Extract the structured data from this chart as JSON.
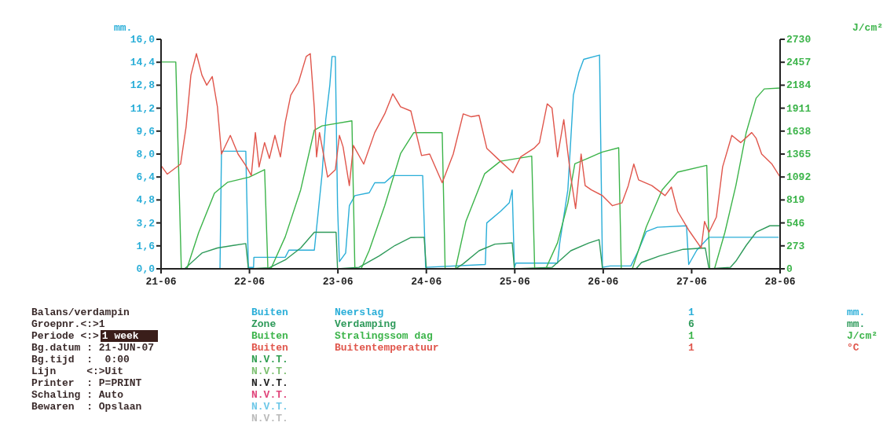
{
  "chart_data": {
    "type": "line",
    "ylabel": "mm.",
    "y2label": "J/cm²",
    "xlim": [
      "--06-21",
      "--06-28"
    ],
    "xticks": [
      {
        "value": "--06-21",
        "label": "21-06"
      },
      {
        "value": "--06-22",
        "label": "22-06"
      },
      {
        "value": "--06-23",
        "label": "23-06"
      },
      {
        "value": "--06-24",
        "label": "24-06"
      },
      {
        "value": "--06-25",
        "label": "25-06"
      },
      {
        "value": "--06-26",
        "label": "26-06"
      },
      {
        "value": "--06-27",
        "label": "27-06"
      },
      {
        "value": "--06-28",
        "label": "28-06"
      }
    ],
    "ylim": [
      0,
      16
    ],
    "yticks": [
      {
        "value": 0,
        "label": "0,0"
      },
      {
        "value": 1.6,
        "label": "1,6"
      },
      {
        "value": 3.2,
        "label": "3,2"
      },
      {
        "value": 4.8,
        "label": "4,8"
      },
      {
        "value": 6.4,
        "label": "6,4"
      },
      {
        "value": 8,
        "label": "8,0"
      },
      {
        "value": 9.6,
        "label": "9,6"
      },
      {
        "value": 11.2,
        "label": "11,2"
      },
      {
        "value": 12.8,
        "label": "12,8"
      },
      {
        "value": 14.4,
        "label": "14,4"
      },
      {
        "value": 16,
        "label": "16,0"
      }
    ],
    "y2lim": [
      0,
      2730
    ],
    "y2ticks": [
      0,
      273,
      546,
      819,
      1092,
      1365,
      1638,
      1911,
      2184,
      2457,
      2730
    ],
    "legend": "bottom",
    "marker": "none",
    "line_style": "solid",
    "series": [
      {
        "name": "Neerslag",
        "color": "#2aaed8",
        "x": [
          "--06-21T00:00",
          "--06-21T16:00",
          "--06-21T16:24",
          "--06-21T23:00",
          "--06-21T23:42",
          "--06-22T01:06",
          "--06-22T01:12",
          "--06-22T09:42",
          "--06-22T10:42",
          "--06-22T17:36",
          "--06-22T19:42",
          "--06-22T20:42",
          "--06-22T21:48",
          "--06-22T22:24",
          "--06-22T23:18",
          "--06-22T23:54",
          "--06-23T00:24",
          "--06-23T02:06",
          "--06-23T03:06",
          "--06-23T04:36",
          "--06-23T08:30",
          "--06-23T10:00",
          "--06-23T12:42",
          "--06-23T14:54",
          "--06-23T23:00",
          "--06-23T23:48",
          "--06-24T16:00",
          "--06-24T16:24",
          "--06-24T20:06",
          "--06-24T22:30",
          "--06-24T23:18",
          "--06-24T23:54",
          "--06-25T00:18",
          "--06-25T11:36",
          "--06-25T12:12",
          "--06-25T14:24",
          "--06-25T15:54",
          "--06-25T17:24",
          "--06-25T18:42",
          "--06-25T23:00",
          "--06-25T23:48",
          "--06-26T01:54",
          "--06-26T07:30",
          "--06-26T09:36",
          "--06-26T11:42",
          "--06-26T14:42",
          "--06-26T22:36",
          "--06-26T23:12",
          "--06-27T01:24",
          "--06-27T04:42",
          "--06-27T23:36"
        ],
        "values": [
          0,
          0,
          8.2,
          8.2,
          0.1,
          0.1,
          0.8,
          0.8,
          1.3,
          1.3,
          6.6,
          10.4,
          12.8,
          14.8,
          14.8,
          4.4,
          0.5,
          1.1,
          4.4,
          5.1,
          5.3,
          6,
          6,
          6.5,
          6.5,
          0.1,
          0.3,
          3.2,
          4,
          4.6,
          5.5,
          0.1,
          0.4,
          0.4,
          1.8,
          5.5,
          12.1,
          13.7,
          14.6,
          14.9,
          0.1,
          0.2,
          0.2,
          1.3,
          2.6,
          2.9,
          3,
          0.3,
          1.3,
          2.2,
          2.2
        ]
      },
      {
        "name": "Verdamping",
        "color": "#2e9a5a",
        "x": [
          "--06-21T00:00",
          "--06-21T06:24",
          "--06-21T11:06",
          "--06-21T15:18",
          "--06-21T19:36",
          "--06-21T23:00",
          "--06-21T23:42",
          "--06-22T05:24",
          "--06-22T09:42",
          "--06-22T13:54",
          "--06-22T17:36",
          "--06-22T19:42",
          "--06-22T23:30",
          "--06-22T23:54",
          "--06-23T05:42",
          "--06-23T11:12",
          "--06-23T15:30",
          "--06-23T19:48",
          "--06-23T23:24",
          "--06-24T00:00",
          "--06-24T07:54",
          "--06-24T10:00",
          "--06-24T14:18",
          "--06-24T18:36",
          "--06-24T23:18",
          "--06-24T23:54",
          "--06-25T10:06",
          "--06-25T15:12",
          "--06-25T20:06",
          "--06-25T22:54",
          "--06-25T23:48",
          "--06-26T08:54",
          "--06-26T10:24",
          "--06-26T15:18",
          "--06-26T21:42",
          "--06-27T03:42",
          "--06-27T04:42",
          "--06-27T10:30",
          "--06-27T12:00",
          "--06-27T14:48",
          "--06-27T17:30",
          "--06-27T21:12",
          "--06-28T00:00"
        ],
        "values": [
          0,
          0,
          1.1,
          1.45,
          1.63,
          1.76,
          0,
          0.07,
          0.62,
          1.45,
          2.55,
          2.55,
          2.55,
          0,
          0.1,
          0.9,
          1.63,
          2.18,
          2.2,
          0,
          0,
          0.35,
          1.26,
          1.72,
          1.81,
          0,
          0.1,
          1.26,
          1.8,
          2.03,
          0,
          0,
          0.44,
          0.9,
          1.36,
          1.45,
          0,
          0.1,
          0.53,
          1.63,
          2.55,
          3,
          3
        ]
      },
      {
        "name": "Stralingssom dag",
        "color": "#3cb44a",
        "axis": "y2",
        "x": [
          "--06-21T00:00",
          "--06-21T04:00",
          "--06-21T05:30",
          "--06-21T07:00",
          "--06-21T10:12",
          "--06-21T14:30",
          "--06-21T18:06",
          "--06-21T23:54",
          "--06-22T04:06",
          "--06-22T05:00",
          "--06-22T05:48",
          "--06-22T09:42",
          "--06-22T13:54",
          "--06-22T17:36",
          "--06-22T19:42",
          "--06-23T03:48",
          "--06-23T04:36",
          "--06-23T06:18",
          "--06-23T08:30",
          "--06-23T12:42",
          "--06-23T17:00",
          "--06-23T20:36",
          "--06-24T04:18",
          "--06-24T05:06",
          "--06-24T07:54",
          "--06-24T10:42",
          "--06-24T15:48",
          "--06-24T20:06",
          "--06-25T04:36",
          "--06-25T05:24",
          "--06-25T08:24",
          "--06-25T11:36",
          "--06-25T14:24",
          "--06-25T16:18",
          "--06-25T20:06",
          "--06-25T23:48",
          "--06-26T04:12",
          "--06-26T04:54",
          "--06-26T07:54",
          "--06-26T11:42",
          "--06-26T16:00",
          "--06-26T20:12",
          "--06-27T04:06",
          "--06-27T04:54",
          "--06-27T06:12",
          "--06-27T09:00",
          "--06-27T12:00",
          "--06-27T14:48",
          "--06-27T17:30",
          "--06-27T19:42",
          "--06-28T00:00"
        ],
        "values": [
          2460,
          2460,
          0,
          0,
          430,
          900,
          1030,
          1090,
          1180,
          0,
          0,
          380,
          940,
          1650,
          1700,
          1760,
          0,
          0,
          220,
          750,
          1370,
          1620,
          1620,
          0,
          0,
          560,
          1130,
          1280,
          1340,
          0,
          0,
          310,
          780,
          1250,
          1320,
          1390,
          1440,
          0,
          0,
          500,
          940,
          1150,
          1230,
          0,
          0,
          430,
          990,
          1620,
          2030,
          2140,
          2150
        ]
      },
      {
        "name": "Buitentemperatuur",
        "color": "#e0564c",
        "x": [
          "--06-21T00:00",
          "--06-21T01:42",
          "--06-21T05:18",
          "--06-21T06:48",
          "--06-21T08:06",
          "--06-21T09:36",
          "--06-21T11:06",
          "--06-21T12:24",
          "--06-21T13:54",
          "--06-21T15:18",
          "--06-21T16:24",
          "--06-21T18:48",
          "--06-21T20:54",
          "--06-21T23:00",
          "--06-22T00:30",
          "--06-22T01:36",
          "--06-22T02:36",
          "--06-22T04:06",
          "--06-22T05:24",
          "--06-22T06:54",
          "--06-22T08:24",
          "--06-22T09:42",
          "--06-22T11:12",
          "--06-22T13:18",
          "--06-22T15:24",
          "--06-22T16:30",
          "--06-22T17:36",
          "--06-22T18:12",
          "--06-22T19:00",
          "--06-22T21:12",
          "--06-22T23:18",
          "--06-23T00:24",
          "--06-23T01:24",
          "--06-23T03:06",
          "--06-23T04:12",
          "--06-23T07:00",
          "--06-23T10:00",
          "--06-23T12:42",
          "--06-23T14:54",
          "--06-23T17:00",
          "--06-23T19:48",
          "--06-23T22:42",
          "--06-24T00:54",
          "--06-24T04:18",
          "--06-24T07:18",
          "--06-24T10:00",
          "--06-24T12:12",
          "--06-24T14:18",
          "--06-24T16:24",
          "--06-24T20:06",
          "--06-24T23:30",
          "--06-25T01:36",
          "--06-25T05:12",
          "--06-25T06:42",
          "--06-25T08:48",
          "--06-25T10:06",
          "--06-25T11:36",
          "--06-25T13:18",
          "--06-25T15:12",
          "--06-25T16:30",
          "--06-25T18:00",
          "--06-25T19:06",
          "--06-25T20:48",
          "--06-25T23:48",
          "--06-26T02:30",
          "--06-26T05:06",
          "--06-26T06:48",
          "--06-26T08:18",
          "--06-26T09:36",
          "--06-26T13:12",
          "--06-26T16:48",
          "--06-26T18:30",
          "--06-26T20:12",
          "--06-26T23:12",
          "--06-27T02:36",
          "--06-27T03:30",
          "--06-27T04:42",
          "--06-27T06:42",
          "--06-27T08:24",
          "--06-27T10:54",
          "--06-27T13:18",
          "--06-27T16:18",
          "--06-27T17:30",
          "--06-27T19:00",
          "--06-27T21:48",
          "--06-28T00:00"
        ],
        "values": [
          7.2,
          6.6,
          7.3,
          9.9,
          13.5,
          15,
          13.5,
          12.8,
          13.4,
          11.3,
          8,
          9.3,
          8,
          7.2,
          6.5,
          9.5,
          7.1,
          8.8,
          7.7,
          9.3,
          7.8,
          10.2,
          12.1,
          13,
          14.8,
          15,
          11.2,
          7.8,
          9.5,
          6.4,
          6.9,
          9.3,
          8.5,
          5.8,
          8.6,
          7.3,
          9.5,
          10.8,
          12.2,
          11.3,
          11,
          7.9,
          8,
          6,
          8,
          10.8,
          10.6,
          10.7,
          8.4,
          7.5,
          6.7,
          7.8,
          8.4,
          8.8,
          11.5,
          11.2,
          7.8,
          10.4,
          6.4,
          4.2,
          8,
          5.8,
          5.5,
          5.1,
          4.4,
          4.6,
          5.8,
          7.3,
          6.2,
          5.8,
          5.1,
          5.7,
          4,
          2.7,
          1.45,
          3.3,
          2.55,
          3.6,
          7.1,
          9.3,
          8.8,
          9.5,
          9.1,
          8,
          7.3,
          6.4
        ]
      }
    ],
    "annotations": [
      "Balans/verdampin",
      "Groepnr.<:>1",
      "Periode <:>",
      "1 week",
      "Bg.datum : 21-JUN-07",
      "Bg.tijd  :  0:00",
      "Lijn     <:>Uit",
      "Printer  : P=PRINT",
      "Schaling : Auto",
      "Bewaren  : Opslaan",
      "N.V.T.",
      "N.V.T.",
      "N.V.T.",
      "N.V.T.",
      "N.V.T.",
      "N.V.T.",
      "Buiten",
      "1",
      "mm.",
      "Zone",
      "6",
      "mm.",
      "Buiten",
      "1",
      "J/cm²",
      "Buiten",
      "1",
      "°C"
    ]
  }
}
